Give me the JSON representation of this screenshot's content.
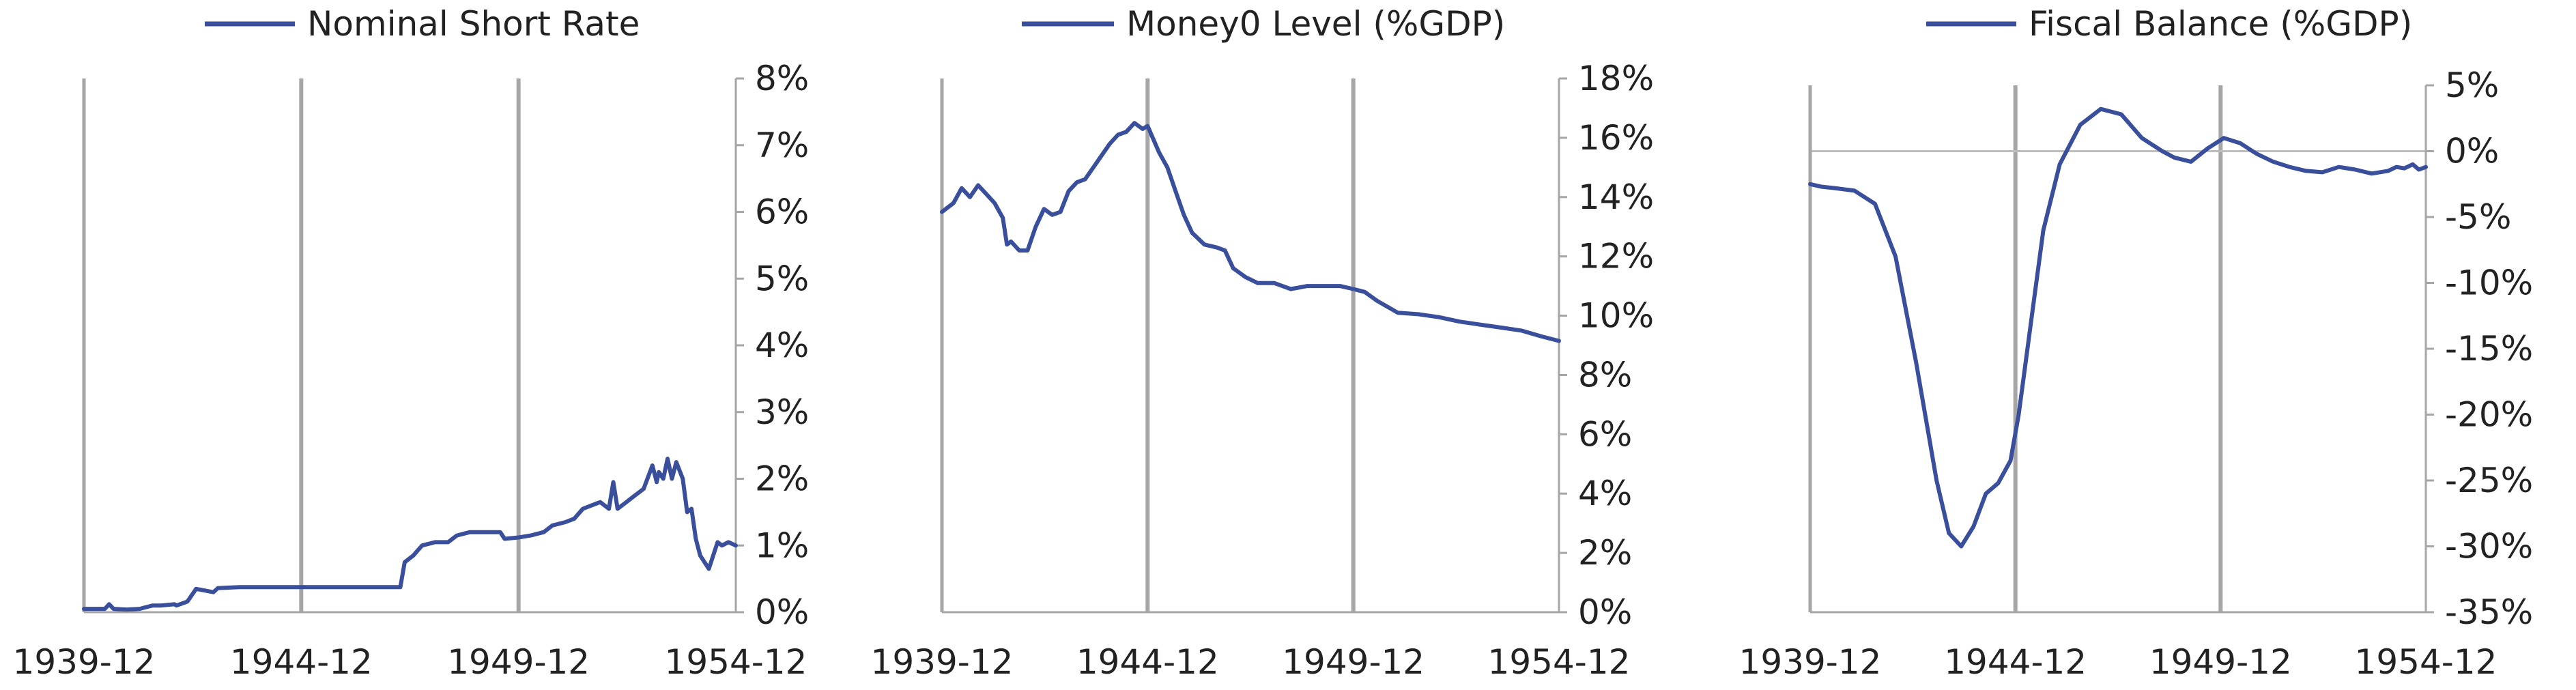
{
  "chart_data": [
    {
      "type": "line",
      "title": "",
      "legend": {
        "label": "Nominal Short Rate",
        "position": "top"
      },
      "color": "#3a4f9c",
      "x_ticks": [
        "1939-12",
        "1944-12",
        "1949-12",
        "1954-12"
      ],
      "x_range": [
        1939.92,
        1954.92
      ],
      "ylim": [
        0,
        8
      ],
      "y_ticks": [
        0,
        1,
        2,
        3,
        4,
        5,
        6,
        7,
        8
      ],
      "y_tick_labels": [
        "0%",
        "1%",
        "2%",
        "3%",
        "4%",
        "5%",
        "6%",
        "7%",
        "8%"
      ],
      "vlines": [
        1944.92,
        1949.92
      ],
      "series": [
        {
          "name": "Nominal Short Rate",
          "x": [
            1939.92,
            1940.4,
            1940.5,
            1940.6,
            1940.9,
            1941.2,
            1941.5,
            1941.7,
            1942.0,
            1942.05,
            1942.3,
            1942.5,
            1942.9,
            1943.0,
            1943.5,
            1945.0,
            1946.0,
            1947.2,
            1947.3,
            1947.5,
            1947.7,
            1948.0,
            1948.3,
            1948.5,
            1948.8,
            1949.5,
            1949.6,
            1949.92,
            1950.2,
            1950.5,
            1950.7,
            1951.0,
            1951.2,
            1951.4,
            1951.6,
            1951.8,
            1952.0,
            1952.1,
            1952.2,
            1952.4,
            1952.6,
            1952.8,
            1953.0,
            1953.1,
            1953.15,
            1953.25,
            1953.35,
            1953.45,
            1953.55,
            1953.7,
            1953.8,
            1953.9,
            1954.0,
            1954.1,
            1954.3,
            1954.5,
            1954.6,
            1954.75,
            1954.92
          ],
          "y": [
            0.05,
            0.05,
            0.12,
            0.05,
            0.04,
            0.05,
            0.1,
            0.1,
            0.12,
            0.1,
            0.16,
            0.35,
            0.3,
            0.36,
            0.375,
            0.375,
            0.375,
            0.375,
            0.75,
            0.85,
            1.0,
            1.05,
            1.05,
            1.15,
            1.2,
            1.2,
            1.1,
            1.12,
            1.15,
            1.2,
            1.3,
            1.35,
            1.4,
            1.55,
            1.6,
            1.65,
            1.55,
            1.95,
            1.55,
            1.65,
            1.75,
            1.85,
            2.2,
            1.95,
            2.1,
            2.0,
            2.3,
            2.0,
            2.25,
            2.0,
            1.5,
            1.55,
            1.1,
            0.85,
            0.65,
            1.05,
            1.0,
            1.05,
            1.0
          ]
        }
      ]
    },
    {
      "type": "line",
      "title": "",
      "legend": {
        "label": "Money0 Level (%GDP)",
        "position": "top"
      },
      "color": "#3a4f9c",
      "x_ticks": [
        "1939-12",
        "1944-12",
        "1949-12",
        "1954-12"
      ],
      "x_range": [
        1939.92,
        1954.92
      ],
      "ylim": [
        0,
        18
      ],
      "y_ticks": [
        0,
        2,
        4,
        6,
        8,
        10,
        12,
        14,
        16,
        18
      ],
      "y_tick_labels": [
        "0%",
        "2%",
        "4%",
        "6%",
        "8%",
        "10%",
        "12%",
        "14%",
        "16%",
        "18%"
      ],
      "vlines": [
        1944.92,
        1949.92
      ],
      "series": [
        {
          "name": "Money0 Level (%GDP)",
          "x": [
            1939.92,
            1940.2,
            1940.4,
            1940.6,
            1940.8,
            1941.0,
            1941.2,
            1941.4,
            1941.5,
            1941.6,
            1941.8,
            1942.0,
            1942.2,
            1942.4,
            1942.6,
            1942.8,
            1943.0,
            1943.2,
            1943.4,
            1943.6,
            1943.8,
            1944.0,
            1944.2,
            1944.4,
            1944.6,
            1944.8,
            1944.92,
            1945.2,
            1945.4,
            1945.6,
            1945.8,
            1946.0,
            1946.3,
            1946.6,
            1946.8,
            1947.0,
            1947.3,
            1947.6,
            1948.0,
            1948.4,
            1948.8,
            1949.2,
            1949.6,
            1949.92,
            1950.2,
            1950.5,
            1951.0,
            1951.5,
            1952.0,
            1952.5,
            1953.0,
            1953.5,
            1954.0,
            1954.5,
            1954.92
          ],
          "y": [
            13.5,
            13.8,
            14.3,
            14.0,
            14.4,
            14.1,
            13.8,
            13.3,
            12.4,
            12.5,
            12.2,
            12.2,
            13.0,
            13.6,
            13.4,
            13.5,
            14.2,
            14.5,
            14.6,
            15.0,
            15.4,
            15.8,
            16.1,
            16.2,
            16.5,
            16.3,
            16.4,
            15.5,
            15.0,
            14.2,
            13.4,
            12.8,
            12.4,
            12.3,
            12.2,
            11.6,
            11.3,
            11.1,
            11.1,
            10.9,
            11.0,
            11.0,
            11.0,
            10.9,
            10.8,
            10.5,
            10.1,
            10.05,
            9.95,
            9.8,
            9.7,
            9.6,
            9.5,
            9.3,
            9.15
          ]
        }
      ]
    },
    {
      "type": "line",
      "title": "",
      "legend": {
        "label": "Fiscal Balance (%GDP)",
        "position": "top"
      },
      "color": "#3a4f9c",
      "x_ticks": [
        "1939-12",
        "1944-12",
        "1949-12",
        "1954-12"
      ],
      "x_range": [
        1939.92,
        1954.92
      ],
      "ylim": [
        -35,
        5
      ],
      "y_ticks": [
        -35,
        -30,
        -25,
        -20,
        -15,
        -10,
        -5,
        0,
        5
      ],
      "y_tick_labels": [
        "-35%",
        "-30%",
        "-25%",
        "-20%",
        "-15%",
        "-10%",
        "-5%",
        "0%",
        "5%"
      ],
      "vlines": [
        1944.92,
        1949.92
      ],
      "zero_line": true,
      "series": [
        {
          "name": "Fiscal Balance (%GDP)",
          "x": [
            1939.92,
            1940.2,
            1940.5,
            1941.0,
            1941.5,
            1942.0,
            1942.5,
            1943.0,
            1943.3,
            1943.6,
            1943.9,
            1944.2,
            1944.5,
            1944.8,
            1945.0,
            1945.3,
            1945.6,
            1946.0,
            1946.5,
            1947.0,
            1947.5,
            1948.0,
            1948.5,
            1948.8,
            1949.2,
            1949.6,
            1950.0,
            1950.4,
            1950.8,
            1951.2,
            1951.6,
            1952.0,
            1952.4,
            1952.8,
            1953.2,
            1953.6,
            1954.0,
            1954.2,
            1954.4,
            1954.6,
            1954.75,
            1954.92
          ],
          "y": [
            -2.5,
            -2.7,
            -2.8,
            -3.0,
            -4.0,
            -8.0,
            -16.0,
            -25.0,
            -29.0,
            -30.0,
            -28.5,
            -26.0,
            -25.2,
            -23.5,
            -20.0,
            -13.0,
            -6.0,
            -1.0,
            2.0,
            3.2,
            2.8,
            1.0,
            0.0,
            -0.5,
            -0.8,
            0.2,
            1.0,
            0.6,
            -0.2,
            -0.8,
            -1.2,
            -1.5,
            -1.6,
            -1.2,
            -1.4,
            -1.7,
            -1.5,
            -1.2,
            -1.3,
            -1.0,
            -1.4,
            -1.2
          ]
        }
      ]
    }
  ]
}
